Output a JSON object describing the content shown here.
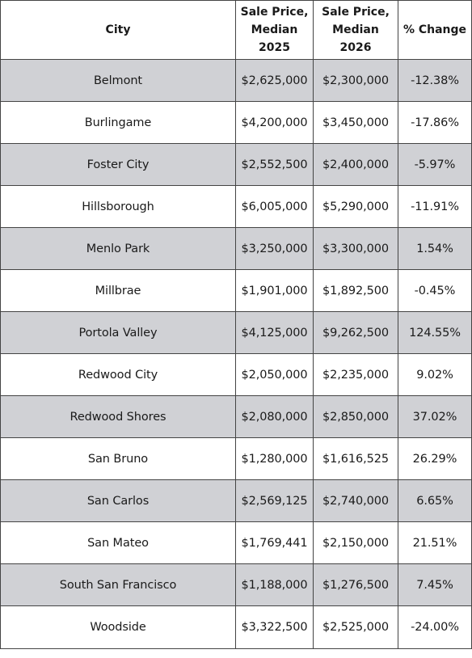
{
  "table": {
    "headers": {
      "city": "City",
      "price_2025": [
        "Sale Price,",
        "Median",
        "2025"
      ],
      "price_2026": [
        "Sale Price,",
        "Median",
        "2026"
      ],
      "change": "% Change"
    },
    "rows": [
      {
        "city": "Belmont",
        "price_2025": "$2,625,000",
        "price_2026": "$2,300,000",
        "change": "-12.38%"
      },
      {
        "city": "Burlingame",
        "price_2025": "$4,200,000",
        "price_2026": "$3,450,000",
        "change": "-17.86%"
      },
      {
        "city": "Foster City",
        "price_2025": "$2,552,500",
        "price_2026": "$2,400,000",
        "change": "-5.97%"
      },
      {
        "city": "Hillsborough",
        "price_2025": "$6,005,000",
        "price_2026": "$5,290,000",
        "change": "-11.91%"
      },
      {
        "city": "Menlo Park",
        "price_2025": "$3,250,000",
        "price_2026": "$3,300,000",
        "change": "1.54%"
      },
      {
        "city": "Millbrae",
        "price_2025": "$1,901,000",
        "price_2026": "$1,892,500",
        "change": "-0.45%"
      },
      {
        "city": "Portola Valley",
        "price_2025": "$4,125,000",
        "price_2026": "$9,262,500",
        "change": "124.55%"
      },
      {
        "city": "Redwood City",
        "price_2025": "$2,050,000",
        "price_2026": "$2,235,000",
        "change": "9.02%"
      },
      {
        "city": "Redwood Shores",
        "price_2025": "$2,080,000",
        "price_2026": "$2,850,000",
        "change": "37.02%"
      },
      {
        "city": "San Bruno",
        "price_2025": "$1,280,000",
        "price_2026": "$1,616,525",
        "change": "26.29%"
      },
      {
        "city": "San Carlos",
        "price_2025": "$2,569,125",
        "price_2026": "$2,740,000",
        "change": "6.65%"
      },
      {
        "city": "San Mateo",
        "price_2025": "$1,769,441",
        "price_2026": "$2,150,000",
        "change": "21.51%"
      },
      {
        "city": "South San Francisco",
        "price_2025": "$1,188,000",
        "price_2026": "$1,276,500",
        "change": "7.45%"
      },
      {
        "city": "Woodside",
        "price_2025": "$3,322,500",
        "price_2026": "$2,525,000",
        "change": "-24.00%"
      }
    ]
  },
  "colors": {
    "shaded_row": "#d0d1d5",
    "plain_row": "#ffffff",
    "border": "#444444"
  }
}
